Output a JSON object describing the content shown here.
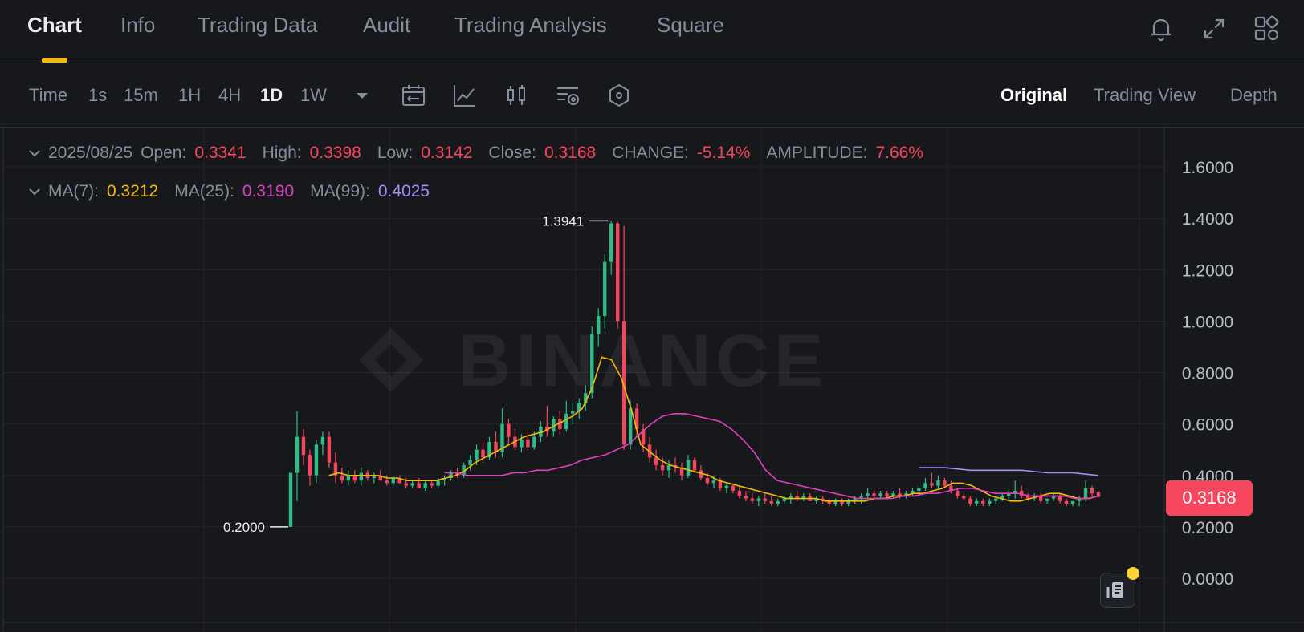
{
  "tabs": {
    "chart": "Chart",
    "info": "Info",
    "trading_data": "Trading Data",
    "audit": "Audit",
    "trading_analysis": "Trading Analysis",
    "square": "Square"
  },
  "header_icons": [
    "bell-icon",
    "expand-icon",
    "grid-icon"
  ],
  "intervals": {
    "time": "Time",
    "s1": "1s",
    "m15": "15m",
    "h1": "1H",
    "h4": "4H",
    "d1": "1D",
    "w1": "1W"
  },
  "tool_icons": [
    "date-range-icon",
    "indicator-icon",
    "candle-style-icon",
    "settings-icon",
    "hexagon-icon"
  ],
  "views": {
    "original": "Original",
    "trading_view": "Trading View",
    "depth": "Depth"
  },
  "ohlc": {
    "date": "2025/08/25",
    "open_label": "Open:",
    "open": "0.3341",
    "high_label": "High:",
    "high": "0.3398",
    "low_label": "Low:",
    "low": "0.3142",
    "close_label": "Close:",
    "close": "0.3168",
    "change_label": "CHANGE:",
    "change": "-5.14%",
    "amplitude_label": "AMPLITUDE:",
    "amplitude": "7.66%"
  },
  "ma": {
    "ma7_label": "MA(7):",
    "ma7": "0.3212",
    "ma25_label": "MA(25):",
    "ma25": "0.3190",
    "ma99_label": "MA(99):",
    "ma99": "0.4025"
  },
  "current_price": "0.3168",
  "colors": {
    "up": "#2ebd85",
    "down": "#f6465d",
    "ma7": "#f0b90b",
    "ma25": "#e040bd",
    "ma99": "#a78bfa",
    "accent": "#f0b90b"
  },
  "watermark": "BINANCE",
  "chart_data": {
    "type": "candlestick",
    "y_axis": {
      "ticks": [
        "1.6000",
        "1.4000",
        "1.2000",
        "1.0000",
        "0.8000",
        "0.6000",
        "0.4000",
        "0.2000",
        "0.0000"
      ],
      "min": 0,
      "max": 1.6
    },
    "annotations": {
      "high": "1.3941",
      "low": "0.2000"
    },
    "candles": [
      [
        0.2,
        0.41,
        0.2,
        0.41
      ],
      [
        0.41,
        0.65,
        0.3,
        0.55
      ],
      [
        0.55,
        0.58,
        0.44,
        0.48
      ],
      [
        0.48,
        0.5,
        0.36,
        0.4
      ],
      [
        0.4,
        0.54,
        0.37,
        0.52
      ],
      [
        0.52,
        0.57,
        0.48,
        0.55
      ],
      [
        0.55,
        0.57,
        0.43,
        0.45
      ],
      [
        0.45,
        0.49,
        0.37,
        0.4
      ],
      [
        0.4,
        0.43,
        0.37,
        0.38
      ],
      [
        0.38,
        0.42,
        0.36,
        0.4
      ],
      [
        0.4,
        0.42,
        0.37,
        0.38
      ],
      [
        0.38,
        0.43,
        0.36,
        0.41
      ],
      [
        0.41,
        0.42,
        0.38,
        0.39
      ],
      [
        0.39,
        0.41,
        0.37,
        0.4
      ],
      [
        0.4,
        0.42,
        0.38,
        0.38
      ],
      [
        0.38,
        0.4,
        0.36,
        0.37
      ],
      [
        0.37,
        0.4,
        0.36,
        0.39
      ],
      [
        0.39,
        0.4,
        0.37,
        0.37
      ],
      [
        0.37,
        0.39,
        0.35,
        0.36
      ],
      [
        0.36,
        0.38,
        0.35,
        0.37
      ],
      [
        0.37,
        0.39,
        0.35,
        0.35
      ],
      [
        0.35,
        0.38,
        0.34,
        0.37
      ],
      [
        0.37,
        0.38,
        0.35,
        0.36
      ],
      [
        0.36,
        0.39,
        0.35,
        0.38
      ],
      [
        0.38,
        0.4,
        0.36,
        0.39
      ],
      [
        0.39,
        0.42,
        0.38,
        0.41
      ],
      [
        0.41,
        0.43,
        0.39,
        0.4
      ],
      [
        0.4,
        0.45,
        0.39,
        0.44
      ],
      [
        0.44,
        0.48,
        0.42,
        0.46
      ],
      [
        0.46,
        0.52,
        0.44,
        0.5
      ],
      [
        0.5,
        0.54,
        0.45,
        0.47
      ],
      [
        0.47,
        0.55,
        0.46,
        0.53
      ],
      [
        0.53,
        0.57,
        0.47,
        0.49
      ],
      [
        0.49,
        0.66,
        0.47,
        0.6
      ],
      [
        0.6,
        0.62,
        0.52,
        0.55
      ],
      [
        0.55,
        0.58,
        0.5,
        0.51
      ],
      [
        0.51,
        0.56,
        0.49,
        0.54
      ],
      [
        0.54,
        0.57,
        0.5,
        0.51
      ],
      [
        0.51,
        0.57,
        0.5,
        0.55
      ],
      [
        0.55,
        0.61,
        0.53,
        0.59
      ],
      [
        0.59,
        0.67,
        0.55,
        0.57
      ],
      [
        0.57,
        0.63,
        0.55,
        0.62
      ],
      [
        0.62,
        0.65,
        0.56,
        0.58
      ],
      [
        0.58,
        0.69,
        0.57,
        0.64
      ],
      [
        0.64,
        0.68,
        0.6,
        0.65
      ],
      [
        0.65,
        0.7,
        0.62,
        0.68
      ],
      [
        0.68,
        0.75,
        0.65,
        0.72
      ],
      [
        0.72,
        0.98,
        0.7,
        0.95
      ],
      [
        0.95,
        1.05,
        0.9,
        1.02
      ],
      [
        1.02,
        1.26,
        0.97,
        1.23
      ],
      [
        1.23,
        1.39,
        1.18,
        1.38
      ],
      [
        1.38,
        1.39,
        0.97,
        1.0
      ],
      [
        1.0,
        1.37,
        0.5,
        0.52
      ],
      [
        0.52,
        0.69,
        0.5,
        0.66
      ],
      [
        0.66,
        0.68,
        0.55,
        0.58
      ],
      [
        0.58,
        0.6,
        0.49,
        0.52
      ],
      [
        0.52,
        0.55,
        0.45,
        0.47
      ],
      [
        0.47,
        0.5,
        0.42,
        0.44
      ],
      [
        0.44,
        0.47,
        0.4,
        0.42
      ],
      [
        0.42,
        0.46,
        0.39,
        0.44
      ],
      [
        0.44,
        0.47,
        0.41,
        0.43
      ],
      [
        0.43,
        0.45,
        0.38,
        0.4
      ],
      [
        0.4,
        0.48,
        0.39,
        0.46
      ],
      [
        0.46,
        0.47,
        0.41,
        0.42
      ],
      [
        0.42,
        0.44,
        0.38,
        0.39
      ],
      [
        0.39,
        0.41,
        0.36,
        0.37
      ],
      [
        0.37,
        0.4,
        0.35,
        0.38
      ],
      [
        0.38,
        0.39,
        0.34,
        0.35
      ],
      [
        0.35,
        0.37,
        0.33,
        0.36
      ],
      [
        0.36,
        0.37,
        0.33,
        0.34
      ],
      [
        0.34,
        0.36,
        0.31,
        0.32
      ],
      [
        0.32,
        0.34,
        0.3,
        0.31
      ],
      [
        0.31,
        0.33,
        0.29,
        0.3
      ],
      [
        0.3,
        0.32,
        0.28,
        0.31
      ],
      [
        0.31,
        0.33,
        0.29,
        0.3
      ],
      [
        0.3,
        0.32,
        0.28,
        0.29
      ],
      [
        0.29,
        0.31,
        0.28,
        0.3
      ],
      [
        0.3,
        0.32,
        0.29,
        0.31
      ],
      [
        0.31,
        0.33,
        0.29,
        0.32
      ],
      [
        0.32,
        0.34,
        0.3,
        0.31
      ],
      [
        0.31,
        0.33,
        0.3,
        0.32
      ],
      [
        0.32,
        0.33,
        0.3,
        0.3
      ],
      [
        0.3,
        0.32,
        0.29,
        0.31
      ],
      [
        0.31,
        0.32,
        0.29,
        0.3
      ],
      [
        0.3,
        0.31,
        0.28,
        0.29
      ],
      [
        0.29,
        0.31,
        0.28,
        0.3
      ],
      [
        0.3,
        0.31,
        0.28,
        0.29
      ],
      [
        0.29,
        0.31,
        0.28,
        0.3
      ],
      [
        0.3,
        0.32,
        0.29,
        0.31
      ],
      [
        0.31,
        0.33,
        0.29,
        0.32
      ],
      [
        0.32,
        0.35,
        0.3,
        0.33
      ],
      [
        0.33,
        0.34,
        0.31,
        0.32
      ],
      [
        0.32,
        0.34,
        0.31,
        0.33
      ],
      [
        0.33,
        0.34,
        0.31,
        0.32
      ],
      [
        0.32,
        0.34,
        0.31,
        0.33
      ],
      [
        0.33,
        0.35,
        0.31,
        0.32
      ],
      [
        0.32,
        0.34,
        0.31,
        0.33
      ],
      [
        0.33,
        0.35,
        0.32,
        0.34
      ],
      [
        0.34,
        0.36,
        0.32,
        0.35
      ],
      [
        0.35,
        0.39,
        0.34,
        0.37
      ],
      [
        0.37,
        0.41,
        0.35,
        0.36
      ],
      [
        0.36,
        0.4,
        0.35,
        0.38
      ],
      [
        0.38,
        0.39,
        0.35,
        0.36
      ],
      [
        0.36,
        0.38,
        0.33,
        0.34
      ],
      [
        0.34,
        0.35,
        0.31,
        0.32
      ],
      [
        0.32,
        0.33,
        0.3,
        0.31
      ],
      [
        0.31,
        0.32,
        0.28,
        0.29
      ],
      [
        0.29,
        0.31,
        0.28,
        0.3
      ],
      [
        0.3,
        0.31,
        0.28,
        0.29
      ],
      [
        0.29,
        0.31,
        0.28,
        0.3
      ],
      [
        0.3,
        0.32,
        0.29,
        0.31
      ],
      [
        0.31,
        0.33,
        0.3,
        0.32
      ],
      [
        0.32,
        0.34,
        0.3,
        0.33
      ],
      [
        0.33,
        0.38,
        0.31,
        0.34
      ],
      [
        0.34,
        0.36,
        0.31,
        0.32
      ],
      [
        0.32,
        0.33,
        0.3,
        0.31
      ],
      [
        0.31,
        0.33,
        0.3,
        0.32
      ],
      [
        0.32,
        0.33,
        0.29,
        0.3
      ],
      [
        0.3,
        0.31,
        0.29,
        0.31
      ],
      [
        0.31,
        0.33,
        0.3,
        0.32
      ],
      [
        0.32,
        0.33,
        0.29,
        0.3
      ],
      [
        0.3,
        0.31,
        0.28,
        0.29
      ],
      [
        0.29,
        0.3,
        0.28,
        0.3
      ],
      [
        0.3,
        0.32,
        0.28,
        0.31
      ],
      [
        0.31,
        0.38,
        0.3,
        0.35
      ],
      [
        0.35,
        0.36,
        0.32,
        0.33
      ],
      [
        0.3341,
        0.3398,
        0.3142,
        0.3168
      ]
    ],
    "ma7": [
      0.4,
      0.41,
      0.4,
      0.4,
      0.4,
      0.4,
      0.39,
      0.39,
      0.38,
      0.38,
      0.38,
      0.38,
      0.39,
      0.4,
      0.42,
      0.45,
      0.47,
      0.49,
      0.51,
      0.53,
      0.55,
      0.56,
      0.57,
      0.59,
      0.61,
      0.63,
      0.66,
      0.74,
      0.86,
      0.85,
      0.78,
      0.66,
      0.52,
      0.49,
      0.46,
      0.44,
      0.43,
      0.42,
      0.41,
      0.4,
      0.38,
      0.37,
      0.36,
      0.35,
      0.34,
      0.33,
      0.32,
      0.31,
      0.31,
      0.31,
      0.31,
      0.3,
      0.3,
      0.3,
      0.3,
      0.3,
      0.31,
      0.31,
      0.32,
      0.32,
      0.33,
      0.33,
      0.34,
      0.35,
      0.37,
      0.37,
      0.36,
      0.34,
      0.32,
      0.31,
      0.3,
      0.3,
      0.31,
      0.32,
      0.33,
      0.33,
      0.32,
      0.31,
      0.31,
      0.32
    ],
    "ma25": [
      0.41,
      0.41,
      0.4,
      0.4,
      0.4,
      0.4,
      0.41,
      0.41,
      0.42,
      0.42,
      0.43,
      0.44,
      0.46,
      0.47,
      0.48,
      0.5,
      0.52,
      0.56,
      0.6,
      0.63,
      0.64,
      0.64,
      0.63,
      0.62,
      0.61,
      0.58,
      0.54,
      0.49,
      0.42,
      0.38,
      0.37,
      0.36,
      0.35,
      0.34,
      0.33,
      0.32,
      0.31,
      0.31,
      0.31,
      0.31,
      0.32,
      0.32,
      0.33,
      0.33,
      0.34,
      0.35,
      0.35,
      0.34,
      0.33,
      0.33,
      0.33,
      0.32,
      0.32,
      0.32,
      0.32,
      0.31,
      0.31,
      0.32
    ],
    "ma99": [
      0.43,
      0.43,
      0.42,
      0.42,
      0.42,
      0.41,
      0.41,
      0.4
    ]
  }
}
